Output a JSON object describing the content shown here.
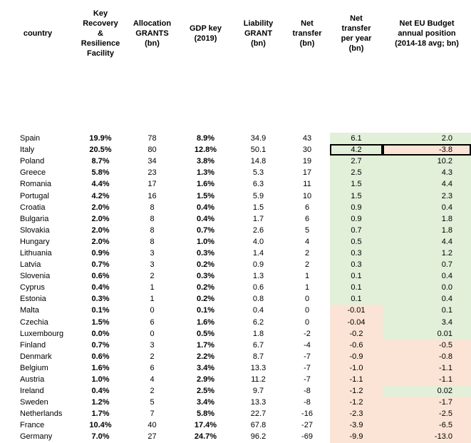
{
  "headers": {
    "country": "country",
    "rrf": "Key Recovery & Resilience Facility",
    "alloc": "Allocation GRANTS (bn)",
    "gdp": "GDP key (2019)",
    "liab": "Liability GRANT (bn)",
    "net": "Net transfer (bn)",
    "nty": "Net transfer per year (bn)",
    "eu": "Net EU Budget annual position (2014-18 avg; bn)"
  },
  "colors": {
    "green": "#e2efd9",
    "pink": "#fbe4d5"
  },
  "rows": [
    {
      "country": "Spain",
      "rrf": "19.9%",
      "alloc": "78",
      "gdp": "8.9%",
      "liab": "34.9",
      "net": "43",
      "nty": "6.1",
      "eu": "2.0",
      "nty_c": "g",
      "eu_c": "g"
    },
    {
      "country": "Italy",
      "rrf": "20.5%",
      "alloc": "80",
      "gdp": "12.8%",
      "liab": "50.1",
      "net": "30",
      "nty": "4.2",
      "eu": "-3.8",
      "nty_c": "g",
      "eu_c": "p",
      "boxed": true
    },
    {
      "country": "Poland",
      "rrf": "8.7%",
      "alloc": "34",
      "gdp": "3.8%",
      "liab": "14.8",
      "net": "19",
      "nty": "2.7",
      "eu": "10.2",
      "nty_c": "g",
      "eu_c": "g"
    },
    {
      "country": "Greece",
      "rrf": "5.8%",
      "alloc": "23",
      "gdp": "1.3%",
      "liab": "5.3",
      "net": "17",
      "nty": "2.5",
      "eu": "4.3",
      "nty_c": "g",
      "eu_c": "g"
    },
    {
      "country": "Romania",
      "rrf": "4.4%",
      "alloc": "17",
      "gdp": "1.6%",
      "liab": "6.3",
      "net": "11",
      "nty": "1.5",
      "eu": "4.4",
      "nty_c": "g",
      "eu_c": "g"
    },
    {
      "country": "Portugal",
      "rrf": "4.2%",
      "alloc": "16",
      "gdp": "1.5%",
      "liab": "5.9",
      "net": "10",
      "nty": "1.5",
      "eu": "2.3",
      "nty_c": "g",
      "eu_c": "g"
    },
    {
      "country": "Croatia",
      "rrf": "2.0%",
      "alloc": "8",
      "gdp": "0.4%",
      "liab": "1.5",
      "net": "6",
      "nty": "0.9",
      "eu": "0.4",
      "nty_c": "g",
      "eu_c": "g"
    },
    {
      "country": "Bulgaria",
      "rrf": "2.0%",
      "alloc": "8",
      "gdp": "0.4%",
      "liab": "1.7",
      "net": "6",
      "nty": "0.9",
      "eu": "1.8",
      "nty_c": "g",
      "eu_c": "g"
    },
    {
      "country": "Slovakia",
      "rrf": "2.0%",
      "alloc": "8",
      "gdp": "0.7%",
      "liab": "2.6",
      "net": "5",
      "nty": "0.7",
      "eu": "1.8",
      "nty_c": "g",
      "eu_c": "g"
    },
    {
      "country": "Hungary",
      "rrf": "2.0%",
      "alloc": "8",
      "gdp": "1.0%",
      "liab": "4.0",
      "net": "4",
      "nty": "0.5",
      "eu": "4.4",
      "nty_c": "g",
      "eu_c": "g"
    },
    {
      "country": "Lithuania",
      "rrf": "0.9%",
      "alloc": "3",
      "gdp": "0.3%",
      "liab": "1.4",
      "net": "2",
      "nty": "0.3",
      "eu": "1.2",
      "nty_c": "g",
      "eu_c": "g"
    },
    {
      "country": "Latvia",
      "rrf": "0.7%",
      "alloc": "3",
      "gdp": "0.2%",
      "liab": "0.9",
      "net": "2",
      "nty": "0.3",
      "eu": "0.7",
      "nty_c": "g",
      "eu_c": "g"
    },
    {
      "country": "Slovenia",
      "rrf": "0.6%",
      "alloc": "2",
      "gdp": "0.3%",
      "liab": "1.3",
      "net": "1",
      "nty": "0.1",
      "eu": "0.4",
      "nty_c": "g",
      "eu_c": "g"
    },
    {
      "country": "Cyprus",
      "rrf": "0.4%",
      "alloc": "1",
      "gdp": "0.2%",
      "liab": "0.6",
      "net": "1",
      "nty": "0.1",
      "eu": "0.0",
      "nty_c": "g",
      "eu_c": "g"
    },
    {
      "country": "Estonia",
      "rrf": "0.3%",
      "alloc": "1",
      "gdp": "0.2%",
      "liab": "0.8",
      "net": "0",
      "nty": "0.1",
      "eu": "0.4",
      "nty_c": "g",
      "eu_c": "g"
    },
    {
      "country": "Malta",
      "rrf": "0.1%",
      "alloc": "0",
      "gdp": "0.1%",
      "liab": "0.4",
      "net": "0",
      "nty": "-0.01",
      "eu": "0.1",
      "nty_c": "p",
      "eu_c": "g"
    },
    {
      "country": "Czechia",
      "rrf": "1.5%",
      "alloc": "6",
      "gdp": "1.6%",
      "liab": "6.2",
      "net": "0",
      "nty": "-0.04",
      "eu": "3.4",
      "nty_c": "p",
      "eu_c": "g"
    },
    {
      "country": "Luxembourg",
      "rrf": "0.0%",
      "alloc": "0",
      "gdp": "0.5%",
      "liab": "1.8",
      "net": "-2",
      "nty": "-0.2",
      "eu": "0.01",
      "nty_c": "p",
      "eu_c": "g"
    },
    {
      "country": "Finland",
      "rrf": "0.7%",
      "alloc": "3",
      "gdp": "1.7%",
      "liab": "6.7",
      "net": "-4",
      "nty": "-0.6",
      "eu": "-0.5",
      "nty_c": "p",
      "eu_c": "p"
    },
    {
      "country": "Denmark",
      "rrf": "0.6%",
      "alloc": "2",
      "gdp": "2.2%",
      "liab": "8.7",
      "net": "-7",
      "nty": "-0.9",
      "eu": "-0.8",
      "nty_c": "p",
      "eu_c": "p"
    },
    {
      "country": "Belgium",
      "rrf": "1.6%",
      "alloc": "6",
      "gdp": "3.4%",
      "liab": "13.3",
      "net": "-7",
      "nty": "-1.0",
      "eu": "-1.1",
      "nty_c": "p",
      "eu_c": "p"
    },
    {
      "country": "Austria",
      "rrf": "1.0%",
      "alloc": "4",
      "gdp": "2.9%",
      "liab": "11.2",
      "net": "-7",
      "nty": "-1.1",
      "eu": "-1.1",
      "nty_c": "p",
      "eu_c": "p"
    },
    {
      "country": "Ireland",
      "rrf": "0.4%",
      "alloc": "2",
      "gdp": "2.5%",
      "liab": "9.7",
      "net": "-8",
      "nty": "-1.2",
      "eu": "0.02",
      "nty_c": "p",
      "eu_c": "g"
    },
    {
      "country": "Sweden",
      "rrf": "1.2%",
      "alloc": "5",
      "gdp": "3.4%",
      "liab": "13.3",
      "net": "-8",
      "nty": "-1.2",
      "eu": "-1.7",
      "nty_c": "p",
      "eu_c": "p"
    },
    {
      "country": "Netherlands",
      "rrf": "1.7%",
      "alloc": "7",
      "gdp": "5.8%",
      "liab": "22.7",
      "net": "-16",
      "nty": "-2.3",
      "eu": "-2.5",
      "nty_c": "p",
      "eu_c": "p"
    },
    {
      "country": "France",
      "rrf": "10.4%",
      "alloc": "40",
      "gdp": "17.4%",
      "liab": "67.8",
      "net": "-27",
      "nty": "-3.9",
      "eu": "-6.5",
      "nty_c": "p",
      "eu_c": "p"
    },
    {
      "country": "Germany",
      "rrf": "7.0%",
      "alloc": "27",
      "gdp": "24.7%",
      "liab": "96.2",
      "net": "-69",
      "nty": "-9.9",
      "eu": "-13.0",
      "nty_c": "p",
      "eu_c": "p"
    }
  ]
}
